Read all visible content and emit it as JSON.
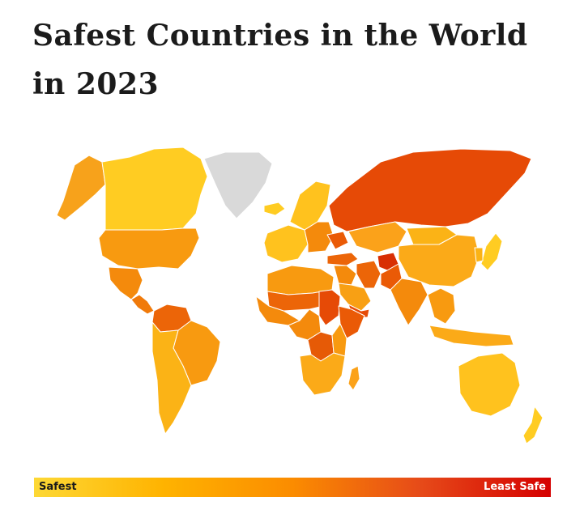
{
  "title": "Safest Countries in the World in 2023",
  "legend": {
    "low_label": "Safest",
    "high_label": "Least Safe",
    "colors": [
      "#fdd835",
      "#ffb300",
      "#fb8c00",
      "#e64a19",
      "#d50000"
    ]
  },
  "colors": {
    "no_data": "#d9d9d9",
    "border": "#ffffff",
    "text": "#1b1b1b"
  },
  "regions": [
    {
      "name": "Alaska",
      "color": "#f7a21b"
    },
    {
      "name": "Canada",
      "color": "#ffcc22"
    },
    {
      "name": "Greenland",
      "color": "#d9d9d9"
    },
    {
      "name": "Iceland",
      "color": "#ffcc22"
    },
    {
      "name": "United States",
      "color": "#f89a10"
    },
    {
      "name": "Mexico",
      "color": "#f48a0c"
    },
    {
      "name": "Central America",
      "color": "#f07a0a"
    },
    {
      "name": "Colombia / Venezuela",
      "color": "#ec6508"
    },
    {
      "name": "Brazil",
      "color": "#f89a10"
    },
    {
      "name": "Southern South America",
      "color": "#fbb316"
    },
    {
      "name": "Western Europe",
      "color": "#ffc21e"
    },
    {
      "name": "Scandinavia",
      "color": "#ffc21e"
    },
    {
      "name": "Eastern Europe",
      "color": "#f48a0c"
    },
    {
      "name": "Ukraine",
      "color": "#ea5a06"
    },
    {
      "name": "Russia",
      "color": "#e64a06"
    },
    {
      "name": "Kazakhstan / Central Asia",
      "color": "#fba21a"
    },
    {
      "name": "Mongolia",
      "color": "#fbb316"
    },
    {
      "name": "China",
      "color": "#fbaa18"
    },
    {
      "name": "Turkey",
      "color": "#ec6508"
    },
    {
      "name": "Middle East",
      "color": "#f48a0c"
    },
    {
      "name": "Arabian Peninsula",
      "color": "#f8a014"
    },
    {
      "name": "Yemen",
      "color": "#e64a06"
    },
    {
      "name": "Iran",
      "color": "#ec6508"
    },
    {
      "name": "Afghanistan",
      "color": "#d82e04"
    },
    {
      "name": "Pakistan",
      "color": "#ea5a06"
    },
    {
      "name": "India",
      "color": "#f48a0c"
    },
    {
      "name": "Southeast Asia",
      "color": "#f89a10"
    },
    {
      "name": "Japan",
      "color": "#ffcc22"
    },
    {
      "name": "Korea",
      "color": "#fbb316"
    },
    {
      "name": "Indonesia",
      "color": "#fbaa18"
    },
    {
      "name": "Australia",
      "color": "#ffc21e"
    },
    {
      "name": "New Zealand",
      "color": "#ffcc22"
    },
    {
      "name": "North Africa",
      "color": "#f89a10"
    },
    {
      "name": "Sahel",
      "color": "#ec6508"
    },
    {
      "name": "West Africa",
      "color": "#f48a0c"
    },
    {
      "name": "Central Africa",
      "color": "#f48a0c"
    },
    {
      "name": "Sudan / South Sudan",
      "color": "#e64a06"
    },
    {
      "name": "Horn of Africa",
      "color": "#ea5a06"
    },
    {
      "name": "DR Congo",
      "color": "#e65a06"
    },
    {
      "name": "East Africa",
      "color": "#f89a10"
    },
    {
      "name": "Southern Africa",
      "color": "#fbaa18"
    },
    {
      "name": "Madagascar",
      "color": "#fba21a"
    }
  ]
}
